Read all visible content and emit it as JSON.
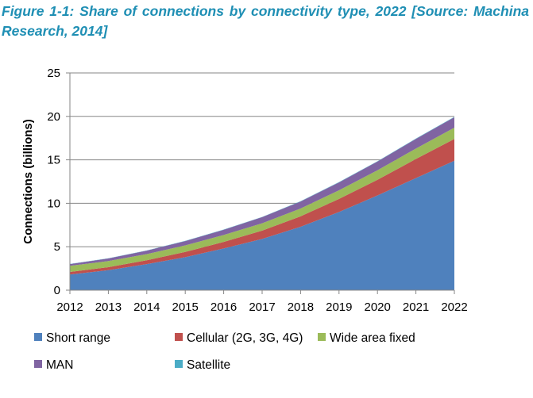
{
  "caption": "Figure 1-1: Share of connections by connectivity type, 2022 [Source: Machina Research, 2014]",
  "chart_data": {
    "type": "area",
    "stacked": true,
    "ylabel": "Connections (billions)",
    "xlabel": "",
    "ylim": [
      0,
      25
    ],
    "yticks": [
      0,
      5,
      10,
      15,
      20,
      25
    ],
    "categories": [
      "2012",
      "2013",
      "2014",
      "2015",
      "2016",
      "2017",
      "2018",
      "2019",
      "2020",
      "2021",
      "2022"
    ],
    "grid": "horizontal",
    "legend_position": "bottom",
    "series": [
      {
        "name": "Short range",
        "color": "#4F81BD",
        "values": [
          1.8,
          2.3,
          3.0,
          3.8,
          4.8,
          5.9,
          7.3,
          9.0,
          10.9,
          12.9,
          14.9
        ]
      },
      {
        "name": "Cellular (2G, 3G, 4G)",
        "color": "#C0504D",
        "values": [
          0.3,
          0.35,
          0.45,
          0.6,
          0.75,
          0.95,
          1.2,
          1.5,
          1.8,
          2.2,
          2.5
        ]
      },
      {
        "name": "Wide area fixed",
        "color": "#9BBB59",
        "values": [
          0.7,
          0.7,
          0.7,
          0.75,
          0.8,
          0.85,
          0.9,
          1.0,
          1.1,
          1.2,
          1.3
        ]
      },
      {
        "name": "MAN",
        "color": "#8064A2",
        "values": [
          0.2,
          0.3,
          0.4,
          0.5,
          0.6,
          0.7,
          0.8,
          0.9,
          1.0,
          1.1,
          1.2
        ]
      },
      {
        "name": "Satellite",
        "color": "#4BACC6",
        "values": [
          0.02,
          0.02,
          0.02,
          0.03,
          0.03,
          0.03,
          0.04,
          0.04,
          0.04,
          0.05,
          0.05
        ]
      }
    ]
  }
}
